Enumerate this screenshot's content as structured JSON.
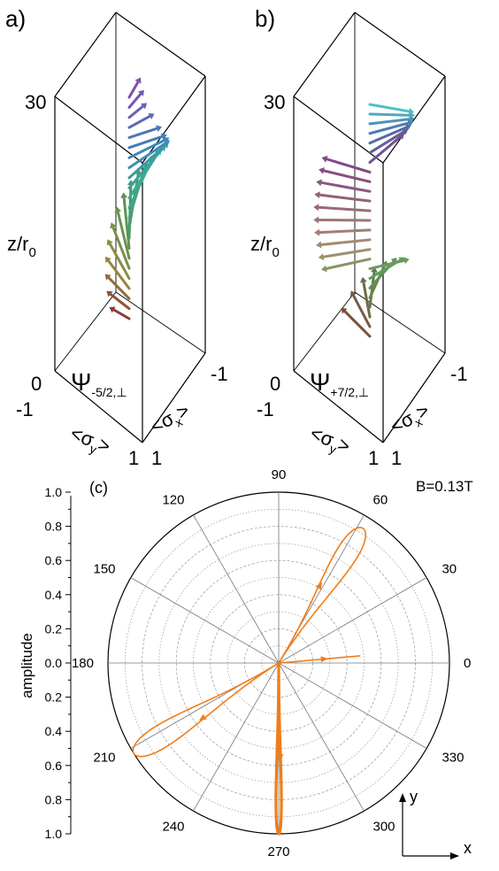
{
  "panel_a": {
    "label": "a)",
    "z_axis": {
      "label": "z/r",
      "label_sub": "0",
      "top": "30",
      "bottom": "0"
    },
    "psi": {
      "symbol": "Ψ",
      "sub": "-5/2,⊥"
    },
    "sigma_y": {
      "label": "<σ",
      "sub": "y",
      "close": ">",
      "min": "-1",
      "max": "1"
    },
    "sigma_x": {
      "label": "<σ",
      "sub": "x",
      "close": ">",
      "min": "-1",
      "max": "1"
    }
  },
  "panel_b": {
    "label": "b)",
    "z_axis": {
      "label": "z/r",
      "label_sub": "0",
      "top": "30",
      "bottom": "0"
    },
    "psi": {
      "symbol": "Ψ",
      "sub": "+7/2,⊥"
    },
    "sigma_y": {
      "label": "<σ",
      "sub": "y",
      "close": ">",
      "min": "-1",
      "max": "1"
    },
    "sigma_x": {
      "label": "<σ",
      "sub": "x",
      "close": ">",
      "min": "-1",
      "max": "1"
    }
  },
  "panel_c": {
    "label": "(c)",
    "field": "B=0.13T",
    "amplitude_label": "amplitude",
    "amplitude_ticks": [
      "1.0",
      "0.8",
      "0.6",
      "0.4",
      "0.2",
      "0.0",
      "0.2",
      "0.4",
      "0.6",
      "0.8",
      "1.0"
    ],
    "angle_labels": [
      "0",
      "30",
      "60",
      "90",
      "120",
      "150",
      "180",
      "210",
      "240",
      "270",
      "300",
      "330"
    ],
    "axes_x": "x",
    "axes_y": "y",
    "line_color": "#f07d18"
  },
  "chart_data": {
    "type": "polar",
    "r_range": [
      0,
      1.0
    ],
    "angular_ticks_deg": [
      0,
      30,
      60,
      90,
      120,
      150,
      180,
      210,
      240,
      270,
      300,
      330
    ],
    "radial_tick_labels": [
      "0.0",
      "0.2",
      "0.4",
      "0.6",
      "0.8",
      "1.0"
    ],
    "grid": true,
    "series": [
      {
        "color": "#f07d18",
        "lobes": [
          {
            "angle_deg": 58,
            "r": 0.93
          },
          {
            "angle_deg": 212,
            "r": 1.0
          },
          {
            "angle_deg": 270,
            "r": 1.0
          },
          {
            "angle_deg": 5,
            "r": 0.48
          }
        ]
      }
    ]
  }
}
